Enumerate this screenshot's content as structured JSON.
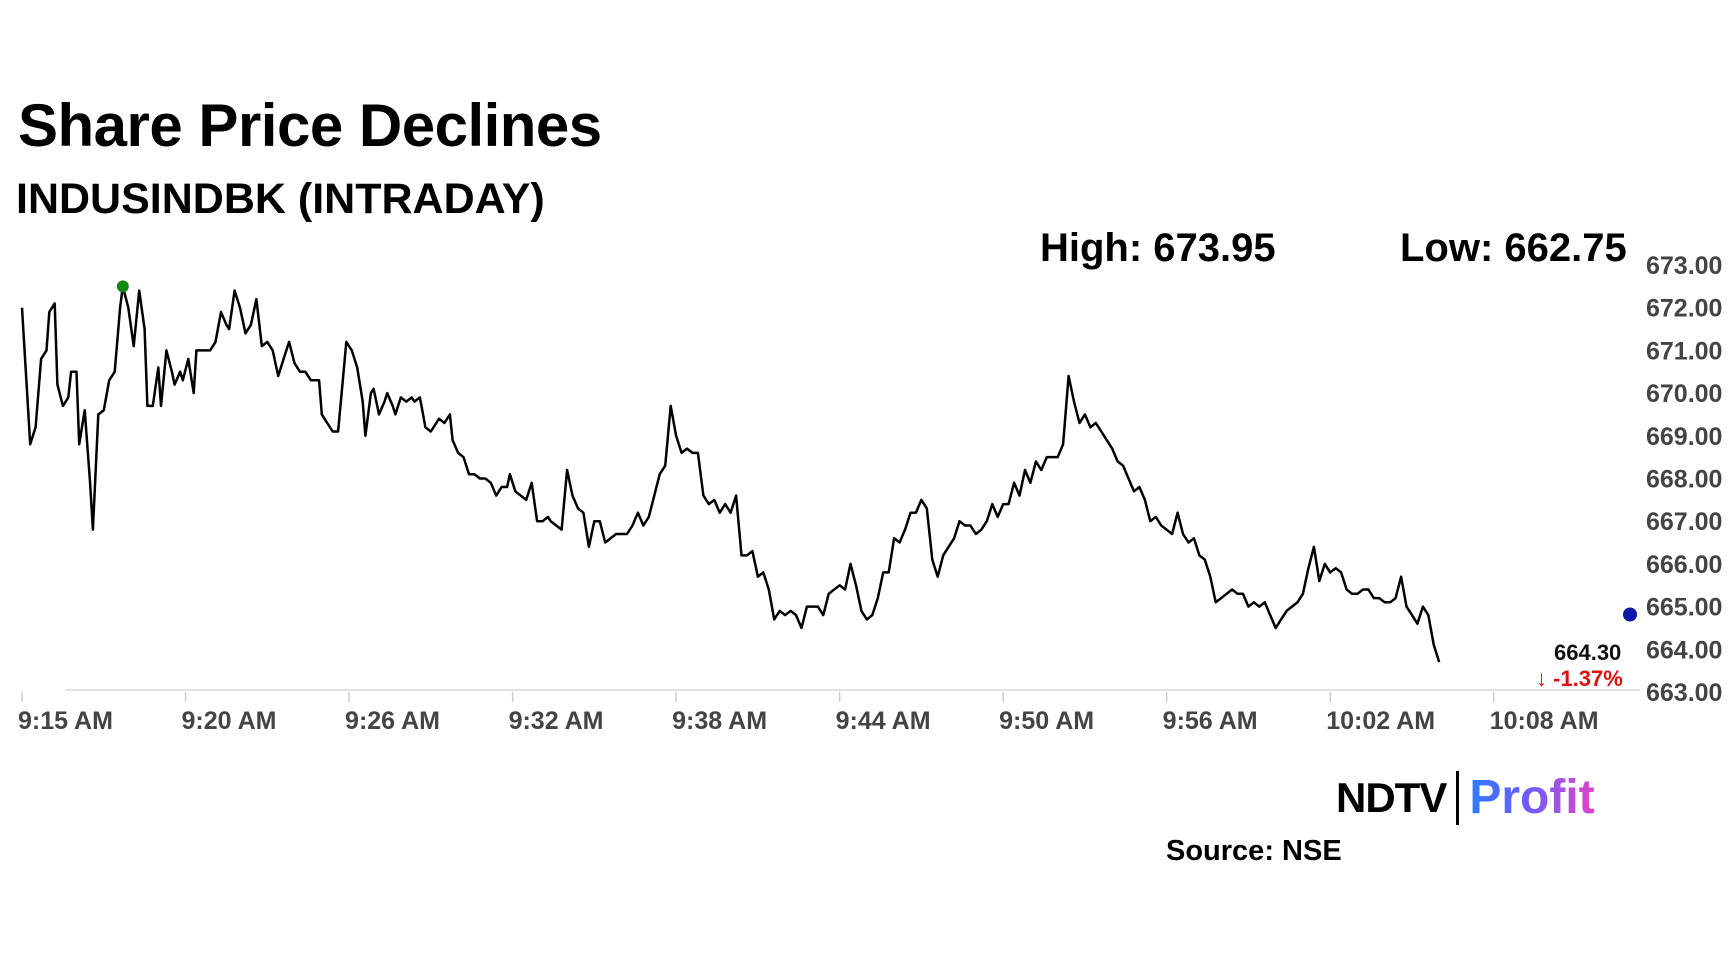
{
  "header": {
    "title": "Share Price Declines",
    "subtitle": "INDUSINDBK (INTRADAY)"
  },
  "stats": {
    "high_label": "High: 673.95",
    "low_label": "Low: 662.75"
  },
  "last": {
    "value_label": "664.30",
    "change_label": "-1.37%"
  },
  "footer": {
    "logo_left": "NDTV",
    "logo_right": "Profit",
    "source": "Source: NSE"
  },
  "colors": {
    "line": "#000000",
    "high_marker": "#118811",
    "current_marker": "#0a1aa8",
    "down": "#e01010"
  },
  "chart_data": {
    "type": "line",
    "title": "Share Price Declines",
    "subtitle": "INDUSINDBK (INTRADAY)",
    "xlabel": "",
    "ylabel": "",
    "x_ticks": [
      "9:15 AM",
      "9:20 AM",
      "9:26 AM",
      "9:32 AM",
      "9:38 AM",
      "9:44 AM",
      "9:50 AM",
      "9:56 AM",
      "10:02 AM",
      "10:08 AM"
    ],
    "x_tick_minutes": [
      0,
      6,
      12,
      18,
      24,
      30,
      36,
      42,
      48,
      54
    ],
    "y_ticks": [
      "663.00",
      "664.00",
      "665.00",
      "666.00",
      "667.00",
      "668.00",
      "669.00",
      "670.00",
      "671.00",
      "672.00",
      "673.00"
    ],
    "ylim": [
      663,
      673
    ],
    "xlim": [
      0,
      59
    ],
    "grid": false,
    "series": [
      {
        "points": [
          [
            0.0,
            672.0
          ],
          [
            0.3,
            668.8
          ],
          [
            0.5,
            669.2
          ],
          [
            0.7,
            670.8
          ],
          [
            0.9,
            671.0
          ],
          [
            1.0,
            671.9
          ],
          [
            1.2,
            672.1
          ],
          [
            1.3,
            670.2
          ],
          [
            1.5,
            669.7
          ],
          [
            1.7,
            669.9
          ],
          [
            1.8,
            670.5
          ],
          [
            2.0,
            670.5
          ],
          [
            2.1,
            668.8
          ],
          [
            2.3,
            669.6
          ],
          [
            2.5,
            667.9
          ],
          [
            2.6,
            666.8
          ],
          [
            2.8,
            669.5
          ],
          [
            3.0,
            669.6
          ],
          [
            3.2,
            670.3
          ],
          [
            3.4,
            670.5
          ],
          [
            3.6,
            672.0
          ],
          [
            3.7,
            672.5
          ],
          [
            3.9,
            672.0
          ],
          [
            4.1,
            671.1
          ],
          [
            4.3,
            672.4
          ],
          [
            4.5,
            671.5
          ],
          [
            4.6,
            669.7
          ],
          [
            4.8,
            669.7
          ],
          [
            5.0,
            670.6
          ],
          [
            5.1,
            669.7
          ],
          [
            5.3,
            671.0
          ],
          [
            5.5,
            670.5
          ],
          [
            5.6,
            670.2
          ],
          [
            5.8,
            670.5
          ],
          [
            5.9,
            670.3
          ],
          [
            6.1,
            670.8
          ],
          [
            6.3,
            670.0
          ],
          [
            6.4,
            671.0
          ],
          [
            6.6,
            671.0
          ],
          [
            6.9,
            671.0
          ],
          [
            7.1,
            671.2
          ],
          [
            7.3,
            671.9
          ],
          [
            7.5,
            671.6
          ],
          [
            7.6,
            671.5
          ],
          [
            7.8,
            672.4
          ],
          [
            8.0,
            672.0
          ],
          [
            8.2,
            671.4
          ],
          [
            8.4,
            671.6
          ],
          [
            8.6,
            672.2
          ],
          [
            8.8,
            671.1
          ],
          [
            9.0,
            671.2
          ],
          [
            9.2,
            671.0
          ],
          [
            9.4,
            670.4
          ],
          [
            9.6,
            670.8
          ],
          [
            9.8,
            671.2
          ],
          [
            10.0,
            670.7
          ],
          [
            10.2,
            670.5
          ],
          [
            10.4,
            670.5
          ],
          [
            10.6,
            670.3
          ],
          [
            10.9,
            670.3
          ],
          [
            11.0,
            669.5
          ],
          [
            11.2,
            669.3
          ],
          [
            11.4,
            669.1
          ],
          [
            11.6,
            669.1
          ],
          [
            11.8,
            670.5
          ],
          [
            11.9,
            671.2
          ],
          [
            12.1,
            671.0
          ],
          [
            12.3,
            670.6
          ],
          [
            12.5,
            669.8
          ],
          [
            12.6,
            669.0
          ],
          [
            12.8,
            670.0
          ],
          [
            12.9,
            670.1
          ],
          [
            13.1,
            669.5
          ],
          [
            13.3,
            669.8
          ],
          [
            13.4,
            670.0
          ],
          [
            13.6,
            669.7
          ],
          [
            13.7,
            669.5
          ],
          [
            13.9,
            669.9
          ],
          [
            14.1,
            669.8
          ],
          [
            14.3,
            669.9
          ],
          [
            14.4,
            669.8
          ],
          [
            14.6,
            669.9
          ],
          [
            14.8,
            669.2
          ],
          [
            15.0,
            669.1
          ],
          [
            15.2,
            669.3
          ],
          [
            15.3,
            669.4
          ],
          [
            15.5,
            669.3
          ],
          [
            15.7,
            669.5
          ],
          [
            15.8,
            668.9
          ],
          [
            16.0,
            668.6
          ],
          [
            16.2,
            668.5
          ],
          [
            16.4,
            668.1
          ],
          [
            16.6,
            668.1
          ],
          [
            16.8,
            668.0
          ],
          [
            17.0,
            668.0
          ],
          [
            17.2,
            667.9
          ],
          [
            17.4,
            667.6
          ],
          [
            17.6,
            667.8
          ],
          [
            17.8,
            667.8
          ],
          [
            17.9,
            668.1
          ],
          [
            18.1,
            667.7
          ],
          [
            18.3,
            667.6
          ],
          [
            18.5,
            667.5
          ],
          [
            18.7,
            667.9
          ],
          [
            18.9,
            667.0
          ],
          [
            19.1,
            667.0
          ],
          [
            19.3,
            667.1
          ],
          [
            19.4,
            667.0
          ],
          [
            19.6,
            666.9
          ],
          [
            19.8,
            666.8
          ],
          [
            20.0,
            668.2
          ],
          [
            20.2,
            667.6
          ],
          [
            20.4,
            667.3
          ],
          [
            20.6,
            667.2
          ],
          [
            20.8,
            666.4
          ],
          [
            21.0,
            667.0
          ],
          [
            21.2,
            667.0
          ],
          [
            21.4,
            666.5
          ],
          [
            21.6,
            666.6
          ],
          [
            21.8,
            666.7
          ],
          [
            22.0,
            666.7
          ],
          [
            22.2,
            666.7
          ],
          [
            22.4,
            666.9
          ],
          [
            22.6,
            667.2
          ],
          [
            22.8,
            666.9
          ],
          [
            23.0,
            667.1
          ],
          [
            23.2,
            667.6
          ],
          [
            23.4,
            668.1
          ],
          [
            23.6,
            668.3
          ],
          [
            23.8,
            669.7
          ],
          [
            24.0,
            669.0
          ],
          [
            24.2,
            668.6
          ],
          [
            24.4,
            668.7
          ],
          [
            24.6,
            668.6
          ],
          [
            24.8,
            668.6
          ],
          [
            25.0,
            667.6
          ],
          [
            25.2,
            667.4
          ],
          [
            25.4,
            667.5
          ],
          [
            25.6,
            667.2
          ],
          [
            25.8,
            667.4
          ],
          [
            26.0,
            667.2
          ],
          [
            26.2,
            667.6
          ],
          [
            26.4,
            666.2
          ],
          [
            26.6,
            666.2
          ],
          [
            26.8,
            666.3
          ],
          [
            27.0,
            665.7
          ],
          [
            27.2,
            665.8
          ],
          [
            27.4,
            665.4
          ],
          [
            27.6,
            664.7
          ],
          [
            27.8,
            664.9
          ],
          [
            28.0,
            664.8
          ],
          [
            28.2,
            664.9
          ],
          [
            28.4,
            664.8
          ],
          [
            28.6,
            664.5
          ],
          [
            28.8,
            665.0
          ],
          [
            29.0,
            665.0
          ],
          [
            29.2,
            665.0
          ],
          [
            29.4,
            664.8
          ],
          [
            29.6,
            665.3
          ],
          [
            29.8,
            665.4
          ],
          [
            30.0,
            665.5
          ],
          [
            30.2,
            665.4
          ],
          [
            30.4,
            666.0
          ],
          [
            30.6,
            665.5
          ],
          [
            30.8,
            664.9
          ],
          [
            31.0,
            664.7
          ],
          [
            31.2,
            664.8
          ],
          [
            31.4,
            665.2
          ],
          [
            31.6,
            665.8
          ],
          [
            31.8,
            665.8
          ],
          [
            32.0,
            666.6
          ],
          [
            32.2,
            666.5
          ],
          [
            32.4,
            666.8
          ],
          [
            32.6,
            667.2
          ],
          [
            32.8,
            667.2
          ],
          [
            33.0,
            667.5
          ],
          [
            33.2,
            667.3
          ],
          [
            33.4,
            666.1
          ],
          [
            33.6,
            665.7
          ],
          [
            33.8,
            666.2
          ],
          [
            34.0,
            666.4
          ],
          [
            34.2,
            666.6
          ],
          [
            34.4,
            667.0
          ],
          [
            34.6,
            666.9
          ],
          [
            34.8,
            666.9
          ],
          [
            35.0,
            666.7
          ],
          [
            35.2,
            666.8
          ],
          [
            35.4,
            667.0
          ],
          [
            35.6,
            667.4
          ],
          [
            35.8,
            667.1
          ],
          [
            36.0,
            667.4
          ],
          [
            36.2,
            667.4
          ],
          [
            36.4,
            667.9
          ],
          [
            36.6,
            667.6
          ],
          [
            36.8,
            668.2
          ],
          [
            37.0,
            667.9
          ],
          [
            37.2,
            668.4
          ],
          [
            37.4,
            668.2
          ],
          [
            37.6,
            668.5
          ],
          [
            37.8,
            668.5
          ],
          [
            38.0,
            668.5
          ],
          [
            38.2,
            668.8
          ],
          [
            38.4,
            670.4
          ],
          [
            38.6,
            669.8
          ],
          [
            38.8,
            669.3
          ],
          [
            39.0,
            669.5
          ],
          [
            39.2,
            669.2
          ],
          [
            39.4,
            669.3
          ],
          [
            39.6,
            669.1
          ],
          [
            39.8,
            668.9
          ],
          [
            40.0,
            668.7
          ],
          [
            40.2,
            668.4
          ],
          [
            40.4,
            668.3
          ],
          [
            40.6,
            668.0
          ],
          [
            40.8,
            667.7
          ],
          [
            41.0,
            667.8
          ],
          [
            41.2,
            667.5
          ],
          [
            41.4,
            667.0
          ],
          [
            41.6,
            667.1
          ],
          [
            41.8,
            666.9
          ],
          [
            42.0,
            666.8
          ],
          [
            42.2,
            666.7
          ],
          [
            42.4,
            667.2
          ],
          [
            42.6,
            666.7
          ],
          [
            42.8,
            666.5
          ],
          [
            43.0,
            666.6
          ],
          [
            43.2,
            666.2
          ],
          [
            43.4,
            666.1
          ],
          [
            43.6,
            665.7
          ],
          [
            43.8,
            665.1
          ],
          [
            44.0,
            665.2
          ],
          [
            44.2,
            665.3
          ],
          [
            44.4,
            665.4
          ],
          [
            44.6,
            665.3
          ],
          [
            44.8,
            665.3
          ],
          [
            45.0,
            665.0
          ],
          [
            45.2,
            665.1
          ],
          [
            45.4,
            665.0
          ],
          [
            45.6,
            665.1
          ],
          [
            45.8,
            664.8
          ],
          [
            46.0,
            664.5
          ],
          [
            46.2,
            664.7
          ],
          [
            46.4,
            664.9
          ],
          [
            46.6,
            665.0
          ],
          [
            46.8,
            665.1
          ],
          [
            47.0,
            665.3
          ],
          [
            47.2,
            665.9
          ],
          [
            47.4,
            666.4
          ],
          [
            47.6,
            665.6
          ],
          [
            47.8,
            666.0
          ],
          [
            48.0,
            665.8
          ],
          [
            48.2,
            665.9
          ],
          [
            48.4,
            665.8
          ],
          [
            48.6,
            665.4
          ],
          [
            48.8,
            665.3
          ],
          [
            49.0,
            665.3
          ],
          [
            49.2,
            665.4
          ],
          [
            49.4,
            665.4
          ],
          [
            49.6,
            665.2
          ],
          [
            49.8,
            665.2
          ],
          [
            50.0,
            665.1
          ],
          [
            50.2,
            665.1
          ],
          [
            50.4,
            665.2
          ],
          [
            50.6,
            665.7
          ],
          [
            50.8,
            665.0
          ],
          [
            51.0,
            664.8
          ],
          [
            51.2,
            664.6
          ],
          [
            51.4,
            665.0
          ],
          [
            51.6,
            664.8
          ],
          [
            51.8,
            664.1
          ],
          [
            52.0,
            663.7
          ]
        ]
      }
    ],
    "high": {
      "minute": 3.7,
      "value": 672.5
    },
    "current": {
      "minute": 59.0,
      "value": 664.3
    }
  }
}
